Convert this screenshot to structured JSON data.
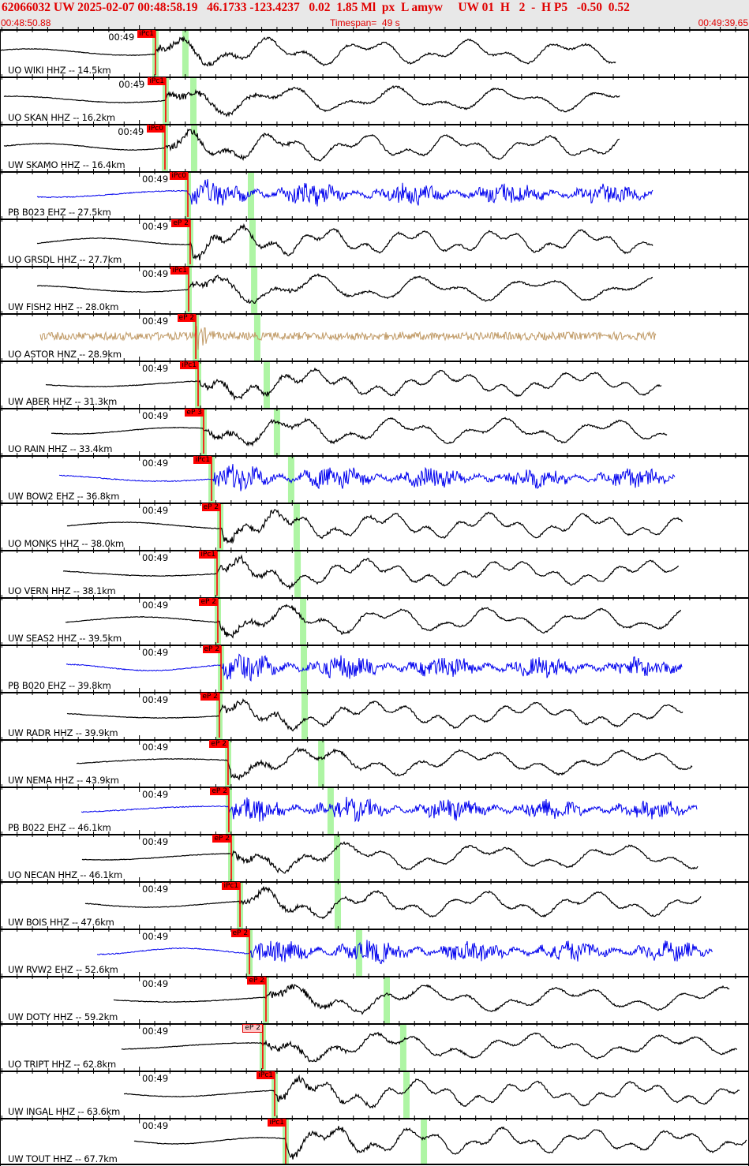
{
  "header": {
    "event_line": "62066032 UW 2025-02-07 00:48:58.19   46.1733 -123.4237   0.02  1.85 Ml  px  L amyw     UW 01  H   2  -  H P5   -0.50  0.52",
    "start_time": "00:48:50.88",
    "timespan": "Timespan=  49 s",
    "end_time": "00:49:39.65"
  },
  "timespan_s": 49,
  "minute_mark_s": 9.12,
  "colors": {
    "header_text": "#e00000",
    "pick": "#ff0000",
    "window": "#aef5a4",
    "black": "#000000",
    "blue": "#0000ee",
    "tan": "#c09a66"
  },
  "traces": [
    {
      "label": "UO WIKI HHZ -- 14.5km",
      "minute": "00:49",
      "pick_label": "iPc1",
      "pick_s": 10.17,
      "s_s": 12.13,
      "start_s": 0,
      "color": "black",
      "kind": "lf"
    },
    {
      "label": "UO SKAN HHZ -- 16.2km",
      "minute": "00:49",
      "pick_label": "iPc1",
      "pick_s": 10.84,
      "s_s": 12.65,
      "start_s": 0.26,
      "color": "black",
      "kind": "lf"
    },
    {
      "label": "UW SKAMO HHZ -- 16.4km",
      "minute": "00:49",
      "pick_label": "iPc0",
      "pick_s": 10.79,
      "s_s": 12.7,
      "start_s": 0.26,
      "color": "black",
      "kind": "lf"
    },
    {
      "label": "PB B023 EHZ -- 27.5km",
      "minute": "00:49",
      "pick_label": "iPc0",
      "pick_s": 12.29,
      "s_s": 16.42,
      "start_s": 2.43,
      "color": "blue",
      "kind": "hf"
    },
    {
      "label": "UO GRSDL HHZ -- 27.7km",
      "minute": "00:49",
      "pick_label": "eP 2",
      "pick_s": 12.44,
      "s_s": 16.52,
      "start_s": 2.43,
      "color": "black",
      "kind": "lf"
    },
    {
      "label": "UW FISH2 HHZ -- 28.0km",
      "minute": "00:49",
      "pick_label": "iPc1",
      "pick_s": 12.34,
      "s_s": 16.63,
      "start_s": 2.43,
      "color": "black",
      "kind": "lf"
    },
    {
      "label": "UO ASTOR HNZ -- 28.9km",
      "minute": "00:49",
      "pick_label": "eP 2",
      "pick_s": 12.81,
      "s_s": 16.83,
      "start_s": 2.63,
      "color": "tan",
      "kind": "noise"
    },
    {
      "label": "UW ABER HHZ -- 31.3km",
      "minute": "00:49",
      "pick_label": "iPc1",
      "pick_s": 12.96,
      "s_s": 17.45,
      "start_s": 2.99,
      "color": "black",
      "kind": "lf"
    },
    {
      "label": "UO RAIN HHZ -- 33.4km",
      "minute": "00:49",
      "pick_label": "eP 3",
      "pick_s": 13.32,
      "s_s": 18.12,
      "start_s": 3.36,
      "color": "black",
      "kind": "lf"
    },
    {
      "label": "UW BOW2 EHZ -- 36.8km",
      "minute": "00:49",
      "pick_label": "iPc1",
      "pick_s": 13.84,
      "s_s": 19.05,
      "start_s": 3.87,
      "color": "blue",
      "kind": "hf"
    },
    {
      "label": "UO MONKS HHZ -- 38.0km",
      "minute": "00:49",
      "pick_label": "eP 2",
      "pick_s": 14.41,
      "s_s": 19.41,
      "start_s": 4.39,
      "color": "black",
      "kind": "lf"
    },
    {
      "label": "UO VERN HHZ -- 38.1km",
      "minute": "00:49",
      "pick_label": "iPc1",
      "pick_s": 14.2,
      "s_s": 19.47,
      "start_s": 4.13,
      "color": "black",
      "kind": "lf"
    },
    {
      "label": "UW SEAS2 HHZ -- 39.5km",
      "minute": "00:49",
      "pick_label": "eP 2",
      "pick_s": 14.25,
      "s_s": 19.83,
      "start_s": 4.29,
      "color": "black",
      "kind": "lf"
    },
    {
      "label": "PB B020 EHZ -- 39.8km",
      "minute": "00:49",
      "pick_label": "eP 2",
      "pick_s": 14.46,
      "s_s": 19.88,
      "start_s": 4.34,
      "color": "blue",
      "kind": "hf"
    },
    {
      "label": "UW RADR HHZ -- 39.9km",
      "minute": "00:49",
      "pick_label": "eP 2",
      "pick_s": 14.35,
      "s_s": 19.93,
      "start_s": 4.39,
      "color": "black",
      "kind": "lf"
    },
    {
      "label": "UW NEMA HHZ -- 43.9km",
      "minute": "00:49",
      "pick_label": "eP 2",
      "pick_s": 14.92,
      "s_s": 21.02,
      "start_s": 5.01,
      "color": "black",
      "kind": "lf"
    },
    {
      "label": "PB B022 EHZ -- 46.1km",
      "minute": "00:49",
      "pick_label": "eP 2",
      "pick_s": 14.97,
      "s_s": 21.63,
      "start_s": 5.32,
      "color": "blue",
      "kind": "hf"
    },
    {
      "label": "UO NECAN HHZ -- 46.1km",
      "minute": "00:49",
      "pick_label": "eP 2",
      "pick_s": 15.13,
      "s_s": 22.05,
      "start_s": 5.37,
      "color": "black",
      "kind": "lf"
    },
    {
      "label": "UW BOIS HHZ -- 47.6km",
      "minute": "00:49",
      "pick_label": "iPc1",
      "pick_s": 15.7,
      "s_s": 22.1,
      "start_s": 5.58,
      "color": "black",
      "kind": "lf"
    },
    {
      "label": "UW RVW2 EHZ -- 52.6km",
      "minute": "00:49",
      "pick_label": "eP 2",
      "pick_s": 16.32,
      "s_s": 23.49,
      "start_s": 6.35,
      "color": "blue",
      "kind": "hf"
    },
    {
      "label": "UW DOTY HHZ -- 59.2km",
      "minute": "00:49",
      "pick_label": "eP 2",
      "pick_s": 17.4,
      "s_s": 25.3,
      "start_s": 7.44,
      "color": "black",
      "kind": "lf"
    },
    {
      "label": "UO TRIPT HHZ -- 62.8km",
      "minute": "00:49",
      "pick_label": "eP 2",
      "pick_s": 17.19,
      "s_s": 26.38,
      "start_s": 7.95,
      "color": "black",
      "kind": "lf",
      "pick_style": "tentative"
    },
    {
      "label": "UW INGAL HHZ -- 63.6km",
      "minute": "00:49",
      "pick_label": "iPc1",
      "pick_s": 17.97,
      "s_s": 26.59,
      "start_s": 8.11,
      "color": "black",
      "kind": "lf"
    },
    {
      "label": "UW TOUT HHZ -- 67.7km",
      "minute": "00:49",
      "pick_label": "iPc1",
      "pick_s": 18.69,
      "s_s": 27.73,
      "start_s": 8.78,
      "color": "black",
      "kind": "lf"
    }
  ]
}
